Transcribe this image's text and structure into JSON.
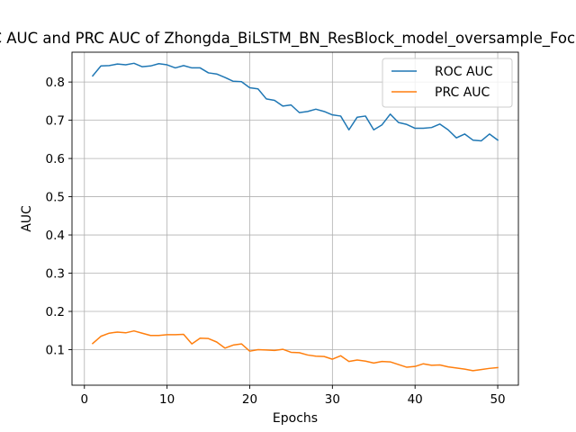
{
  "chart_data": {
    "type": "line",
    "title": "ROC AUC and PRC AUC of Zhongda_BiLSTM_BN_ResBlock_model_oversample_FocalLoss",
    "xlabel": "Epochs",
    "ylabel": "AUC",
    "xlim": [
      -1.5,
      52.5
    ],
    "ylim": [
      0.007,
      0.878
    ],
    "xticks": [
      0,
      10,
      20,
      30,
      40,
      50
    ],
    "yticks": [
      0.1,
      0.2,
      0.3,
      0.4,
      0.5,
      0.6,
      0.7,
      0.8
    ],
    "grid": true,
    "legend_position": "top-right",
    "x": [
      1,
      2,
      3,
      4,
      5,
      6,
      7,
      8,
      9,
      10,
      11,
      12,
      13,
      14,
      15,
      16,
      17,
      18,
      19,
      20,
      21,
      22,
      23,
      24,
      25,
      26,
      27,
      28,
      29,
      30,
      31,
      32,
      33,
      34,
      35,
      36,
      37,
      38,
      39,
      40,
      41,
      42,
      43,
      44,
      45,
      46,
      47,
      48,
      49,
      50
    ],
    "series": [
      {
        "name": "ROC AUC",
        "color": "#1f77b4",
        "values": [
          0.816,
          0.842,
          0.843,
          0.847,
          0.845,
          0.849,
          0.84,
          0.842,
          0.848,
          0.845,
          0.837,
          0.843,
          0.837,
          0.837,
          0.824,
          0.821,
          0.812,
          0.802,
          0.801,
          0.785,
          0.782,
          0.756,
          0.752,
          0.737,
          0.74,
          0.72,
          0.723,
          0.729,
          0.723,
          0.714,
          0.711,
          0.675,
          0.708,
          0.711,
          0.675,
          0.688,
          0.716,
          0.694,
          0.689,
          0.679,
          0.679,
          0.681,
          0.69,
          0.675,
          0.654,
          0.664,
          0.648,
          0.646,
          0.664,
          0.648
        ]
      },
      {
        "name": "PRC AUC",
        "color": "#ff7f0e",
        "values": [
          0.116,
          0.135,
          0.143,
          0.146,
          0.144,
          0.149,
          0.143,
          0.137,
          0.137,
          0.139,
          0.139,
          0.14,
          0.115,
          0.13,
          0.129,
          0.12,
          0.104,
          0.112,
          0.115,
          0.096,
          0.1,
          0.099,
          0.098,
          0.101,
          0.093,
          0.092,
          0.086,
          0.083,
          0.082,
          0.075,
          0.084,
          0.069,
          0.073,
          0.07,
          0.065,
          0.069,
          0.068,
          0.061,
          0.054,
          0.056,
          0.063,
          0.059,
          0.06,
          0.055,
          0.052,
          0.049,
          0.045,
          0.048,
          0.051,
          0.053
        ]
      }
    ]
  }
}
